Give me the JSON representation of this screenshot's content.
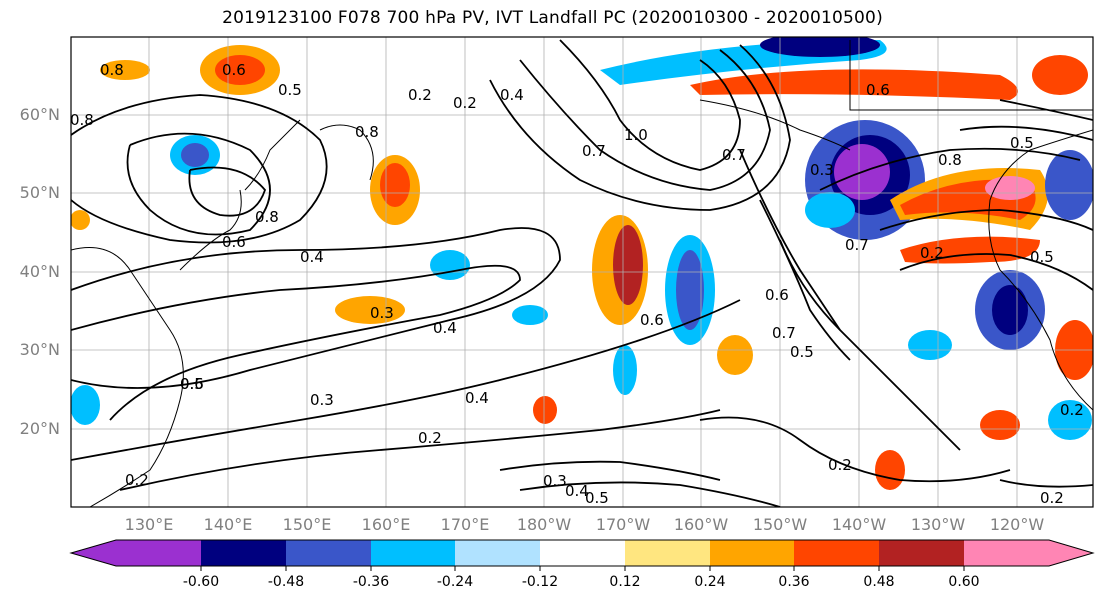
{
  "title": "2019123100 F078 700 hPa PV, IVT Landfall PC (2020010300 - 2020010500)",
  "lat_labels": [
    "60°N",
    "50°N",
    "40°N",
    "30°N",
    "20°N"
  ],
  "lon_labels": [
    "130°E",
    "140°E",
    "150°E",
    "160°E",
    "170°E",
    "180°W",
    "170°W",
    "160°W",
    "150°W",
    "140°W",
    "130°W",
    "120°W"
  ],
  "contour_labels": [
    "0.8",
    "0.6",
    "0.5",
    "0.2",
    "0.4",
    "0.2",
    "0.8",
    "0.7",
    "1.0",
    "0.7",
    "0.5",
    "0.3",
    "0.8",
    "0.6",
    "0.4",
    "0.3",
    "0.4",
    "0.6",
    "0.7",
    "0.6",
    "0.7",
    "0.5",
    "0.2",
    "0.5",
    "0.3",
    "0.2",
    "0.4",
    "0.2",
    "0.3",
    "0.4",
    "0.5",
    "0.2",
    "0.2",
    "0.6",
    "0.8",
    "0.8",
    "0.6",
    "0.2",
    "0.5"
  ],
  "colorbar": {
    "ticks": [
      "-0.60",
      "-0.48",
      "-0.36",
      "-0.24",
      "-0.12",
      "0.12",
      "0.24",
      "0.36",
      "0.48",
      "0.60"
    ],
    "colors": [
      "#9b30d0",
      "#00007f",
      "#3a56c9",
      "#00bfff",
      "#b0e2ff",
      "#ffffff",
      "#ffe680",
      "#ffa500",
      "#ff4500",
      "#b22222",
      "#ff85b4"
    ]
  }
}
